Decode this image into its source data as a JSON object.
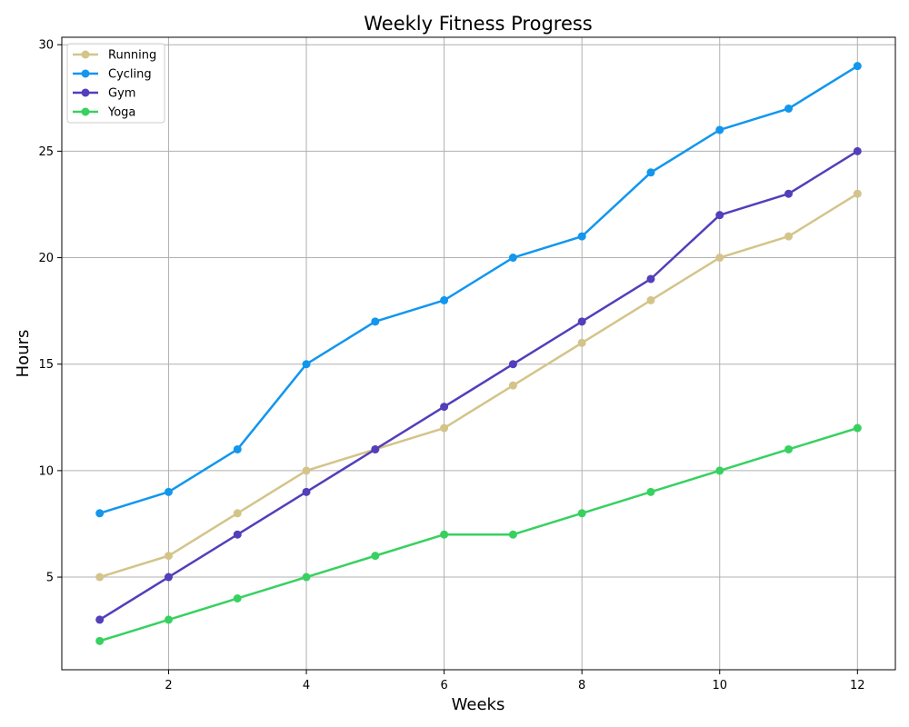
{
  "chart_data": {
    "type": "line",
    "title": "Weekly Fitness Progress",
    "xlabel": "Weeks",
    "ylabel": "Hours",
    "x": [
      1,
      2,
      3,
      4,
      5,
      6,
      7,
      8,
      9,
      10,
      11,
      12
    ],
    "xlim": [
      0.45,
      12.55
    ],
    "ylim": [
      0.65,
      30.35
    ],
    "xticks": [
      2,
      4,
      6,
      8,
      10,
      12
    ],
    "yticks": [
      5,
      10,
      15,
      20,
      25,
      30
    ],
    "grid": true,
    "legend_position": "upper-left",
    "series": [
      {
        "name": "Running",
        "color": "#d4c48a",
        "values": [
          5,
          6,
          8,
          10,
          11,
          12,
          14,
          16,
          18,
          20,
          21,
          23
        ]
      },
      {
        "name": "Cycling",
        "color": "#1296ee",
        "values": [
          8,
          9,
          11,
          15,
          17,
          18,
          20,
          21,
          24,
          26,
          27,
          29
        ]
      },
      {
        "name": "Gym",
        "color": "#533ebb",
        "values": [
          3,
          5,
          7,
          9,
          11,
          13,
          15,
          17,
          19,
          22,
          23,
          25
        ]
      },
      {
        "name": "Yoga",
        "color": "#37d160",
        "values": [
          2,
          3,
          4,
          5,
          6,
          7,
          7,
          8,
          9,
          10,
          11,
          12
        ]
      }
    ]
  }
}
